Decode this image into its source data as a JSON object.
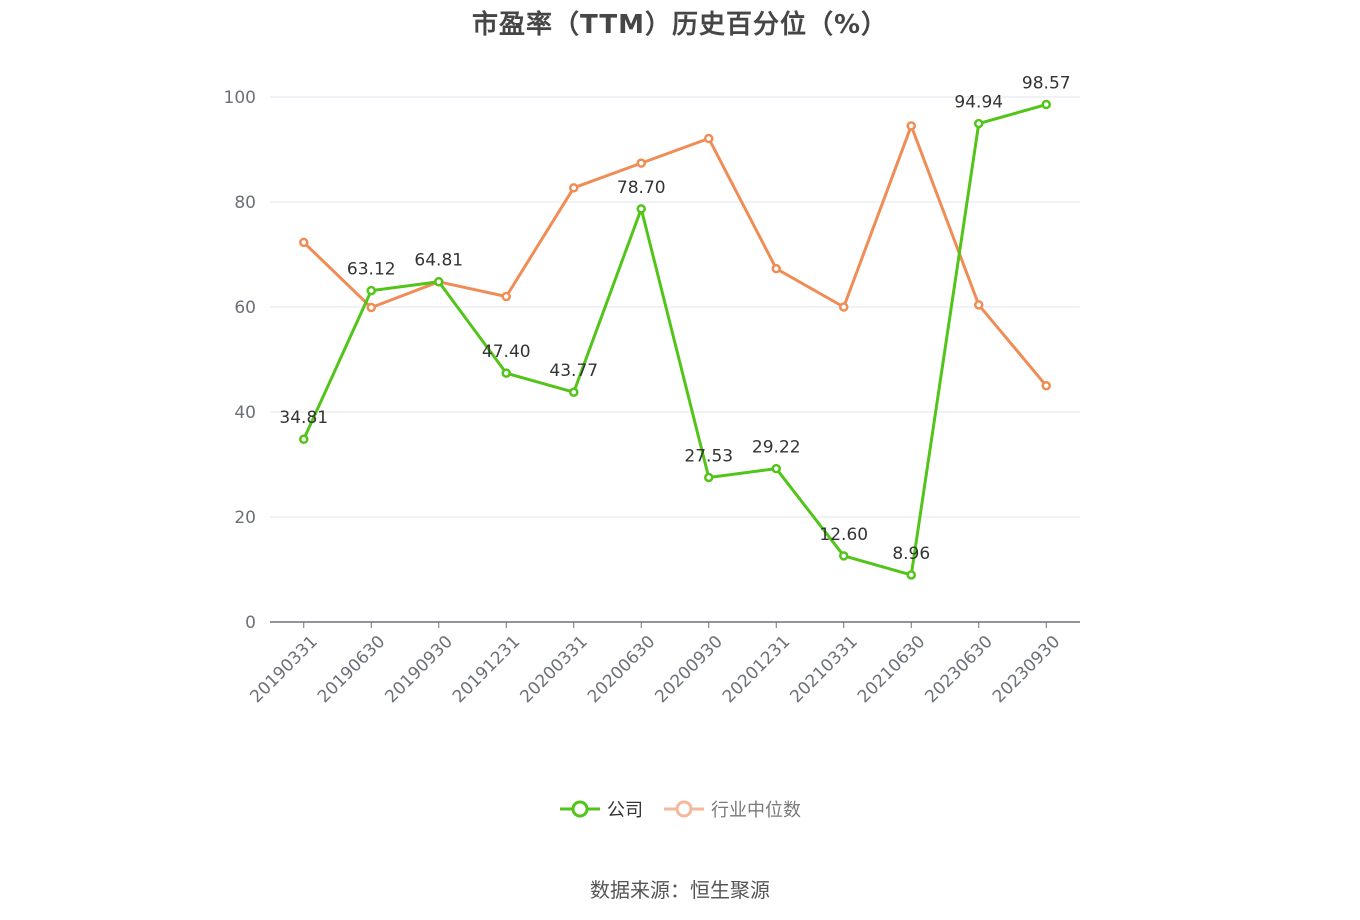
{
  "title": "市盈率（TTM）历史百分位（%）",
  "source": "数据来源：恒生聚源",
  "chart_data": {
    "type": "line",
    "title": "市盈率（TTM）历史百分位（%）",
    "xlabel": "",
    "ylabel": "",
    "ylim": [
      0,
      100
    ],
    "yticks": [
      0,
      20,
      40,
      60,
      80,
      100
    ],
    "grid": true,
    "legend_position": "bottom",
    "categories": [
      "20190331",
      "20190630",
      "20190930",
      "20191231",
      "20200331",
      "20200630",
      "20200930",
      "20201231",
      "20210331",
      "20210630",
      "20230630",
      "20230930"
    ],
    "series": [
      {
        "name": "公司",
        "color": "#52c41a",
        "show_labels": true,
        "values": [
          34.81,
          63.12,
          64.81,
          47.4,
          43.77,
          78.7,
          27.53,
          29.22,
          12.6,
          8.96,
          94.94,
          98.57
        ],
        "labels": [
          "34.81",
          "63.12",
          "64.81",
          "47.40",
          "43.77",
          "78.70",
          "27.53",
          "29.22",
          "12.60",
          "8.96",
          "94.94",
          "98.57"
        ]
      },
      {
        "name": "行业中位数",
        "color": "#f08c55",
        "show_labels": false,
        "values": [
          72.3,
          59.9,
          64.8,
          62.0,
          82.7,
          87.4,
          92.1,
          67.3,
          60.0,
          94.5,
          60.4,
          45.0
        ]
      }
    ]
  }
}
